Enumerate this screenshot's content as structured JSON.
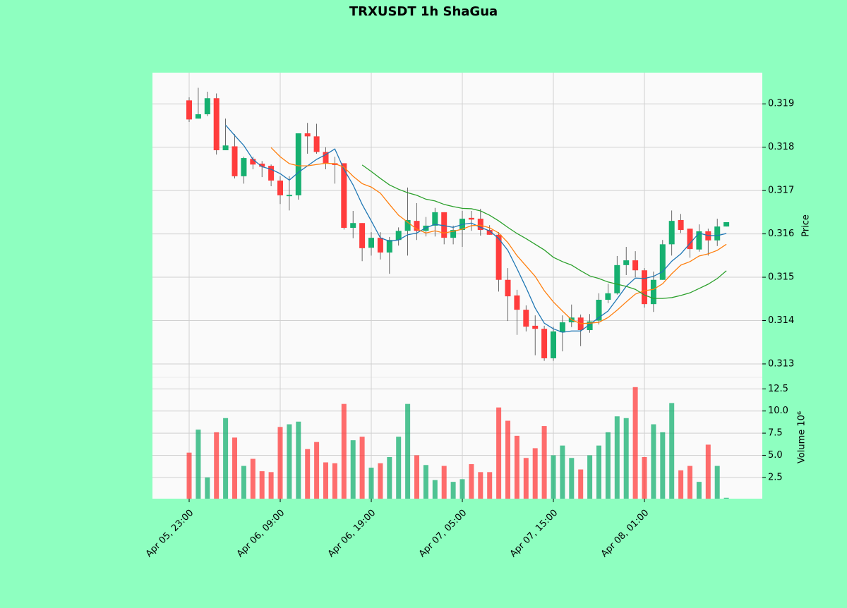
{
  "chart_data": {
    "type": "candlestick",
    "title": "TRXUSDT 1h ShaGua",
    "y_label": "Price",
    "y2_label": "Volume  10⁶",
    "categories": [
      "Apr 05, 23:00",
      null,
      null,
      null,
      null,
      null,
      null,
      null,
      null,
      null,
      "Apr 06, 09:00",
      null,
      null,
      null,
      null,
      null,
      null,
      null,
      null,
      null,
      "Apr 06, 19:00",
      null,
      null,
      null,
      null,
      null,
      null,
      null,
      null,
      null,
      "Apr 07, 05:00",
      null,
      null,
      null,
      null,
      null,
      null,
      null,
      null,
      null,
      "Apr 07, 15:00",
      null,
      null,
      null,
      null,
      null,
      null,
      null,
      null,
      null,
      "Apr 08, 01:00",
      null,
      null,
      null,
      null,
      null,
      null,
      null,
      null,
      null
    ],
    "open": [
      0.31908,
      0.31866,
      0.31876,
      0.31913,
      0.31793,
      0.31802,
      0.31733,
      0.31773,
      0.31762,
      0.31757,
      0.31723,
      0.31687,
      0.31689,
      0.31832,
      0.31825,
      0.31789,
      0.31763,
      0.31763,
      0.31614,
      0.31625,
      0.31568,
      0.31591,
      0.31557,
      0.31586,
      0.31607,
      0.3163,
      0.31607,
      0.31619,
      0.3165,
      0.31591,
      0.31609,
      0.31637,
      0.31635,
      0.31609,
      0.31598,
      0.31494,
      0.31458,
      0.31425,
      0.31388,
      0.31381,
      0.31313,
      0.31373,
      0.31396,
      0.31407,
      0.31378,
      0.314,
      0.31448,
      0.31463,
      0.31528,
      0.31539,
      0.31516,
      0.31438,
      0.31494,
      0.31576,
      0.31632,
      0.31612,
      0.31564,
      0.31606,
      0.31585,
      0.31617
    ],
    "high": [
      0.31915,
      0.31937,
      0.31928,
      0.31924,
      0.31866,
      0.3183,
      0.31778,
      0.31778,
      0.31768,
      0.3176,
      0.31733,
      0.31733,
      0.31832,
      0.31856,
      0.31854,
      0.318,
      0.31778,
      0.31763,
      0.31653,
      0.31625,
      0.31604,
      0.31604,
      0.31593,
      0.31615,
      0.31707,
      0.31671,
      0.31639,
      0.3166,
      0.3165,
      0.31619,
      0.31653,
      0.31653,
      0.31658,
      0.3162,
      0.31604,
      0.31521,
      0.31471,
      0.31435,
      0.31412,
      0.31388,
      0.31386,
      0.31412,
      0.31437,
      0.31414,
      0.31415,
      0.31463,
      0.31485,
      0.31549,
      0.3157,
      0.3156,
      0.31521,
      0.31513,
      0.31586,
      0.31654,
      0.31646,
      0.31612,
      0.31622,
      0.31612,
      0.31635,
      0.31627
    ],
    "low": [
      0.31858,
      0.31866,
      0.31872,
      0.31783,
      0.31793,
      0.31728,
      0.31716,
      0.31749,
      0.31731,
      0.3171,
      0.31669,
      0.31654,
      0.31679,
      0.31785,
      0.31785,
      0.31749,
      0.31716,
      0.3161,
      0.3159,
      0.31537,
      0.3155,
      0.31541,
      0.31508,
      0.31573,
      0.3155,
      0.31586,
      0.31594,
      0.31594,
      0.31576,
      0.31576,
      0.3157,
      0.31607,
      0.31596,
      0.31598,
      0.31467,
      0.31399,
      0.31367,
      0.31375,
      0.3132,
      0.31307,
      0.31307,
      0.31329,
      0.31385,
      0.31341,
      0.31372,
      0.31391,
      0.3144,
      0.3146,
      0.31505,
      0.315,
      0.3143,
      0.3142,
      0.31494,
      0.3155,
      0.31602,
      0.31545,
      0.31559,
      0.3155,
      0.31572,
      0.31617
    ],
    "close": [
      0.31864,
      0.31876,
      0.31913,
      0.31793,
      0.31804,
      0.31733,
      0.31775,
      0.3176,
      0.31755,
      0.31723,
      0.31689,
      0.3169,
      0.31832,
      0.31825,
      0.31789,
      0.31763,
      0.31759,
      0.31614,
      0.31625,
      0.31567,
      0.31591,
      0.31557,
      0.31586,
      0.31607,
      0.31632,
      0.31607,
      0.31619,
      0.3165,
      0.31591,
      0.31609,
      0.31635,
      0.31633,
      0.31609,
      0.31598,
      0.31494,
      0.31456,
      0.31425,
      0.31386,
      0.31381,
      0.31313,
      0.31375,
      0.31396,
      0.31407,
      0.31378,
      0.31398,
      0.31448,
      0.31463,
      0.31528,
      0.31539,
      0.31516,
      0.31438,
      0.31494,
      0.31576,
      0.3163,
      0.31609,
      0.31565,
      0.31606,
      0.31585,
      0.31617,
      0.31627
    ],
    "volume": [
      5.3,
      7.9,
      2.5,
      7.6,
      9.2,
      7.0,
      3.8,
      4.6,
      3.2,
      3.1,
      8.2,
      8.5,
      8.8,
      5.7,
      6.5,
      4.2,
      4.1,
      10.8,
      6.7,
      7.1,
      3.6,
      4.1,
      4.8,
      7.1,
      10.8,
      5.0,
      3.9,
      2.2,
      3.8,
      2.0,
      2.3,
      4.0,
      3.1,
      3.1,
      10.4,
      8.9,
      7.2,
      4.7,
      5.8,
      8.3,
      5.0,
      6.1,
      4.7,
      3.4,
      5.0,
      6.1,
      7.6,
      9.4,
      9.2,
      12.7,
      4.8,
      8.5,
      7.6,
      10.9,
      3.3,
      3.8,
      2.0,
      6.2,
      3.8,
      0.2
    ],
    "series": [
      {
        "color": "#1f77b4",
        "values": [
          null,
          null,
          null,
          null,
          0.31851,
          0.31827,
          0.31804,
          0.31772,
          0.31755,
          0.31749,
          0.31739,
          0.31724,
          0.31742,
          0.31757,
          0.31772,
          0.31783,
          0.31796,
          0.31749,
          0.31713,
          0.31668,
          0.3163,
          0.31591,
          0.31583,
          0.31586,
          0.31598,
          0.31602,
          0.31614,
          0.31622,
          0.31619,
          0.31615,
          0.31622,
          0.31625,
          0.31615,
          0.31607,
          0.31589,
          0.31562,
          0.3152,
          0.31476,
          0.31429,
          0.31394,
          0.31381,
          0.31373,
          0.31376,
          0.31376,
          0.31391,
          0.31407,
          0.31422,
          0.3145,
          0.31479,
          0.31498,
          0.31497,
          0.31502,
          0.31513,
          0.31537,
          0.31554,
          0.31578,
          0.31602,
          0.31596,
          0.31596,
          0.31601
        ]
      },
      {
        "color": "#ff7f0e",
        "values": [
          null,
          null,
          null,
          null,
          null,
          null,
          null,
          null,
          null,
          0.31799,
          0.31778,
          0.31762,
          0.31757,
          0.31757,
          0.3176,
          0.31763,
          0.31762,
          0.31754,
          0.31733,
          0.31716,
          0.31708,
          0.31694,
          0.31668,
          0.31643,
          0.31627,
          0.31611,
          0.31602,
          0.31607,
          0.31602,
          0.31606,
          0.31611,
          0.31619,
          0.3162,
          0.31614,
          0.31602,
          0.3158,
          0.3155,
          0.31526,
          0.31502,
          0.31469,
          0.31443,
          0.31422,
          0.31402,
          0.31393,
          0.31394,
          0.31396,
          0.31407,
          0.31424,
          0.31443,
          0.31461,
          0.31469,
          0.31472,
          0.31485,
          0.31508,
          0.31528,
          0.31536,
          0.31549,
          0.31554,
          0.31562,
          0.31576
        ]
      },
      {
        "color": "#2ca02c",
        "values": [
          null,
          null,
          null,
          null,
          null,
          null,
          null,
          null,
          null,
          null,
          null,
          null,
          null,
          null,
          null,
          null,
          null,
          null,
          null,
          0.31759,
          0.31744,
          0.31728,
          0.31713,
          0.31703,
          0.31695,
          0.31689,
          0.3168,
          0.31676,
          0.31668,
          0.31663,
          0.31659,
          0.31658,
          0.31653,
          0.31643,
          0.3163,
          0.31615,
          0.31601,
          0.31589,
          0.31576,
          0.31563,
          0.31546,
          0.31536,
          0.31528,
          0.31515,
          0.31503,
          0.31497,
          0.31489,
          0.31484,
          0.31479,
          0.31472,
          0.31459,
          0.31451,
          0.31451,
          0.31453,
          0.31458,
          0.31464,
          0.31474,
          0.31484,
          0.31497,
          0.31515
        ]
      }
    ],
    "up_color": "#16b070",
    "down_color": "#ff3c3c",
    "ylim": [
      0.31269,
      0.31972
    ],
    "yticks": [
      0.313,
      0.314,
      0.315,
      0.316,
      0.317,
      0.318,
      0.319
    ],
    "y2lim": [
      0.1,
      13.8
    ],
    "y2ticks": [
      2.5,
      {
        "value": 5,
        "label": "5.0"
      },
      7.5,
      {
        "value": 10,
        "label": "10.0"
      },
      12.5
    ],
    "grid": true
  }
}
